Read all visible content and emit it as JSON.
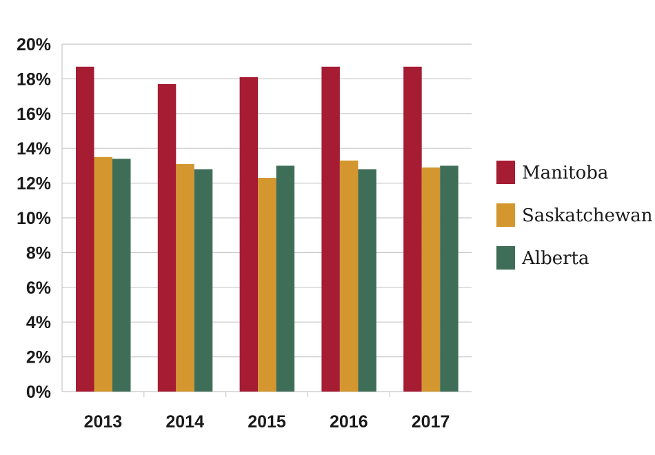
{
  "chart_data": {
    "type": "bar",
    "title": "",
    "xlabel": "",
    "ylabel": "",
    "categories": [
      "2013",
      "2014",
      "2015",
      "2016",
      "2017"
    ],
    "y_tick_labels": [
      "0%",
      "2%",
      "4%",
      "6%",
      "8%",
      "10%",
      "12%",
      "14%",
      "16%",
      "18%",
      "20%"
    ],
    "ylim": [
      0,
      20
    ],
    "grid": true,
    "legend_position": "right",
    "series": [
      {
        "name": "Manitoba",
        "color": "#a51c33",
        "values": [
          18.7,
          17.7,
          18.1,
          18.7,
          18.7
        ]
      },
      {
        "name": "Saskatchewan",
        "color": "#d4962e",
        "values": [
          13.5,
          13.1,
          12.3,
          13.3,
          12.9
        ]
      },
      {
        "name": "Alberta",
        "color": "#3f6e58",
        "values": [
          13.4,
          12.8,
          13.0,
          12.8,
          13.0
        ]
      }
    ]
  }
}
